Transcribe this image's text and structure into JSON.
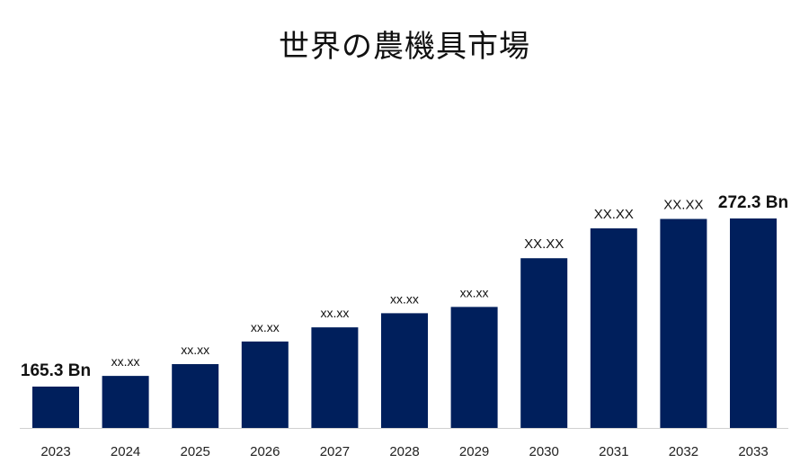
{
  "chart_data": {
    "type": "bar",
    "title": "世界の農機具市場",
    "categories": [
      "2023",
      "2024",
      "2025",
      "2026",
      "2027",
      "2028",
      "2029",
      "2030",
      "2031",
      "2032",
      "2033"
    ],
    "values": [
      165.3,
      172.1,
      179.6,
      194.0,
      203.0,
      212.0,
      216.0,
      247.0,
      266.0,
      272.0,
      272.3
    ],
    "data_labels": [
      "165.3 Bn",
      "xx.xx",
      "xx.xx",
      "xx.xx",
      "xx.xx",
      "xx.xx",
      "xx.xx",
      "XX.XX",
      "XX.XX",
      "XX.XX",
      "272.3 Bn"
    ],
    "bar_color": "#001f5c",
    "grid": false,
    "legend": "none"
  }
}
